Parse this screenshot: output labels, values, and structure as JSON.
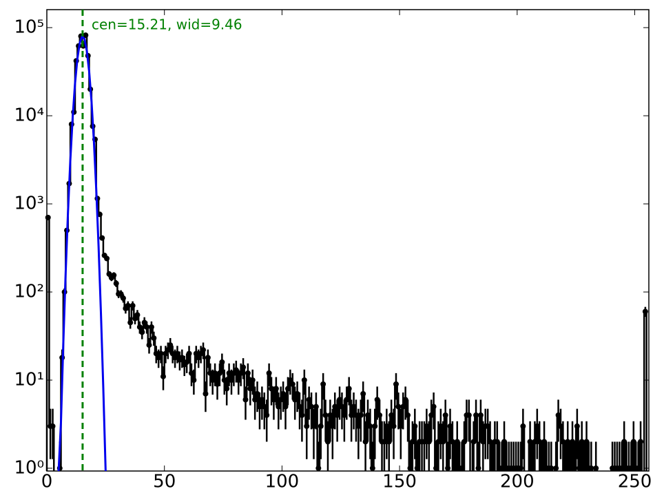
{
  "chart_data": {
    "type": "histogram",
    "bins": [
      0,
      1,
      2,
      3,
      4,
      5,
      6,
      7,
      8,
      9,
      10,
      11,
      12,
      13,
      14,
      15,
      16,
      17,
      18,
      19,
      20,
      21,
      22,
      23,
      24,
      25,
      26,
      27,
      28,
      29,
      30,
      31,
      32,
      33,
      34,
      35,
      36,
      37,
      38,
      39,
      40,
      41,
      42,
      43,
      44,
      45,
      46,
      47,
      48,
      49,
      50,
      51,
      52,
      53,
      54,
      55,
      56,
      57,
      58,
      59,
      60,
      61,
      62,
      63,
      64,
      65,
      66,
      67,
      68,
      69,
      70,
      71,
      72,
      73,
      74,
      75,
      76,
      77,
      78,
      79,
      80,
      81,
      82,
      83,
      84,
      85,
      86,
      87,
      88,
      89,
      90,
      91,
      92,
      93,
      94,
      95,
      96,
      97,
      98,
      99,
      100,
      101,
      102,
      103,
      104,
      105,
      106,
      107,
      108,
      109,
      110,
      111,
      112,
      113,
      114,
      115,
      116,
      117,
      118,
      119,
      120,
      121,
      122,
      123,
      124,
      125,
      126,
      127,
      128,
      129,
      130,
      131,
      132,
      133,
      134,
      135,
      136,
      137,
      138,
      139,
      140,
      141,
      142,
      143,
      144,
      145,
      146,
      147,
      148,
      149,
      150,
      151,
      152,
      153,
      154,
      155,
      156,
      157,
      158,
      159,
      160,
      161,
      162,
      163,
      164,
      165,
      166,
      167,
      168,
      169,
      170,
      171,
      172,
      173,
      174,
      175,
      176,
      177,
      178,
      179,
      180,
      181,
      182,
      183,
      184,
      185,
      186,
      187,
      188,
      189,
      190,
      191,
      192,
      193,
      194,
      195,
      196,
      197,
      198,
      199,
      200,
      201,
      202,
      203,
      204,
      205,
      206,
      207,
      208,
      209,
      210,
      211,
      212,
      213,
      214,
      215,
      216,
      217,
      218,
      219,
      220,
      221,
      222,
      223,
      224,
      225,
      226,
      227,
      228,
      229,
      230,
      231,
      232,
      233,
      234,
      235,
      236,
      237,
      238,
      239,
      240,
      241,
      242,
      243,
      244,
      245,
      246,
      247,
      248,
      249,
      250,
      251,
      252,
      253,
      254,
      255,
      256
    ],
    "values": [
      700,
      3,
      3,
      null,
      null,
      1,
      18,
      100,
      500,
      1700,
      8000,
      11000,
      42000,
      62000,
      80000,
      62000,
      82000,
      48000,
      20000,
      7600,
      5400,
      1150,
      760,
      410,
      260,
      240,
      160,
      145,
      155,
      125,
      95,
      95,
      85,
      65,
      70,
      45,
      70,
      50,
      55,
      40,
      35,
      45,
      40,
      25,
      40,
      30,
      20,
      18,
      20,
      11,
      20,
      22,
      25,
      20,
      18,
      20,
      17,
      18,
      15,
      16,
      20,
      12,
      10,
      20,
      18,
      20,
      22,
      7,
      18,
      12,
      10,
      12,
      9,
      12,
      16,
      10,
      8,
      12,
      10,
      12,
      13,
      10,
      12,
      14,
      6,
      12,
      8,
      10,
      6,
      7,
      5,
      6,
      5,
      4,
      12,
      8,
      6,
      8,
      5,
      6,
      7,
      5,
      8,
      10,
      9,
      6,
      7,
      5,
      4,
      10,
      3,
      6,
      5,
      3,
      5,
      1,
      3,
      9,
      4,
      2,
      4,
      3,
      5,
      4,
      6,
      5,
      4,
      6,
      8,
      4,
      5,
      4,
      3,
      4,
      7,
      2,
      4,
      3,
      1,
      3,
      6,
      4,
      2,
      2,
      3,
      2,
      4,
      3,
      9,
      5,
      3,
      5,
      6,
      4,
      1,
      2,
      3,
      1,
      2,
      2,
      2,
      3,
      2,
      4,
      5,
      1,
      2,
      3,
      2,
      4,
      1,
      3,
      2,
      1,
      2,
      1,
      1,
      2,
      4,
      4,
      null,
      2,
      4,
      1,
      4,
      2,
      3,
      3,
      2,
      1,
      2,
      2,
      1,
      1,
      2,
      1,
      1,
      1,
      1,
      1,
      1,
      1,
      3,
      null,
      null,
      2,
      1,
      2,
      3,
      2,
      1,
      2,
      1,
      1,
      1,
      null,
      1,
      4,
      3,
      2,
      1,
      2,
      1,
      2,
      1,
      3,
      1,
      2,
      1,
      2,
      1,
      1,
      null,
      1,
      null,
      null,
      null,
      null,
      null,
      null,
      1,
      1,
      1,
      1,
      1,
      2,
      1,
      1,
      1,
      2,
      1,
      1,
      2,
      null,
      60,
      null
    ],
    "color": "#000000",
    "fit": {
      "color": "#0000ee",
      "x": [
        5,
        6,
        7,
        8,
        9,
        10,
        11,
        12,
        13,
        14,
        15,
        16,
        17,
        18,
        19,
        20,
        21,
        22,
        23,
        24,
        25
      ],
      "values": [
        0.53,
        3.3,
        26,
        164,
        813,
        3170,
        9700,
        23500,
        44700,
        67200,
        79600,
        74300,
        54700,
        31700,
        14500,
        5200,
        1480,
        330,
        58,
        8.2,
        0.9
      ]
    },
    "vline": {
      "x": 15.21,
      "color": "#008000"
    },
    "annotation": "cen=15.21, wid=9.46",
    "xlim": [
      0,
      256
    ],
    "xticks": [
      0,
      50,
      100,
      150,
      200,
      250
    ],
    "ylim": [
      0.93,
      160000
    ],
    "log_y": true,
    "yticks": [
      {
        "value": 1,
        "label": "10⁰"
      },
      {
        "value": 10,
        "label": "10¹"
      },
      {
        "value": 100,
        "label": "10²"
      },
      {
        "value": 1000,
        "label": "10³"
      },
      {
        "value": 10000,
        "label": "10⁴"
      },
      {
        "value": 100000,
        "label": "10⁵"
      }
    ]
  }
}
